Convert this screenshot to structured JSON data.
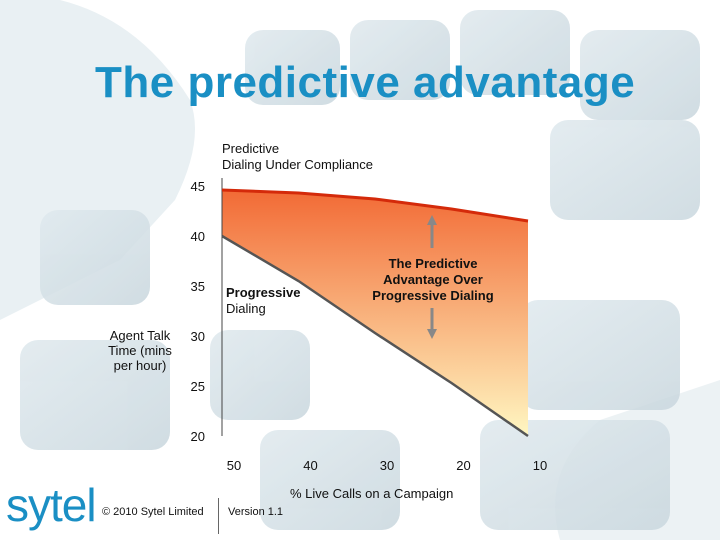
{
  "title": "The predictive advantage",
  "footer": {
    "copyright": "© 2010 Sytel Limited",
    "version": "Version 1.1"
  },
  "logo": "sytel",
  "colors": {
    "title": "#1a8fc4",
    "upper_line": "#d42a0a",
    "lower_line": "#555555",
    "fill_top": "#f26a35",
    "fill_bottom": "#fff7c2",
    "arrow": "#888888",
    "logo": "#1a8fc4"
  },
  "chart_data": {
    "type": "area",
    "xlabel": "% Live Calls on a Campaign",
    "ylabel": "Agent Talk Time (mins per hour)",
    "x_ticks": [
      "50",
      "40",
      "30",
      "20",
      "10"
    ],
    "y_ticks": [
      "45",
      "40",
      "35",
      "30",
      "25",
      "20"
    ],
    "xlim": [
      50,
      10
    ],
    "ylim": [
      20,
      46
    ],
    "series": [
      {
        "name": "Predictive Dialing Under Compliance",
        "x": [
          50,
          40,
          30,
          20,
          10
        ],
        "y": [
          44.6,
          44.3,
          43.7,
          42.7,
          41.5
        ]
      },
      {
        "name": "Progressive Dialing",
        "x": [
          50,
          40,
          30,
          20,
          10
        ],
        "y": [
          40,
          35.5,
          30.3,
          25.3,
          20
        ]
      }
    ],
    "annotations": [
      {
        "id": "predictive_line1",
        "text": "Predictive"
      },
      {
        "id": "predictive_line2",
        "text": "Dialing Under Compliance"
      },
      {
        "id": "progressive_line1",
        "text": "Progressive"
      },
      {
        "id": "progressive_line2",
        "text": "Dialing"
      },
      {
        "id": "advantage",
        "text": "The Predictive Advantage Over Progressive Dialing"
      }
    ]
  }
}
